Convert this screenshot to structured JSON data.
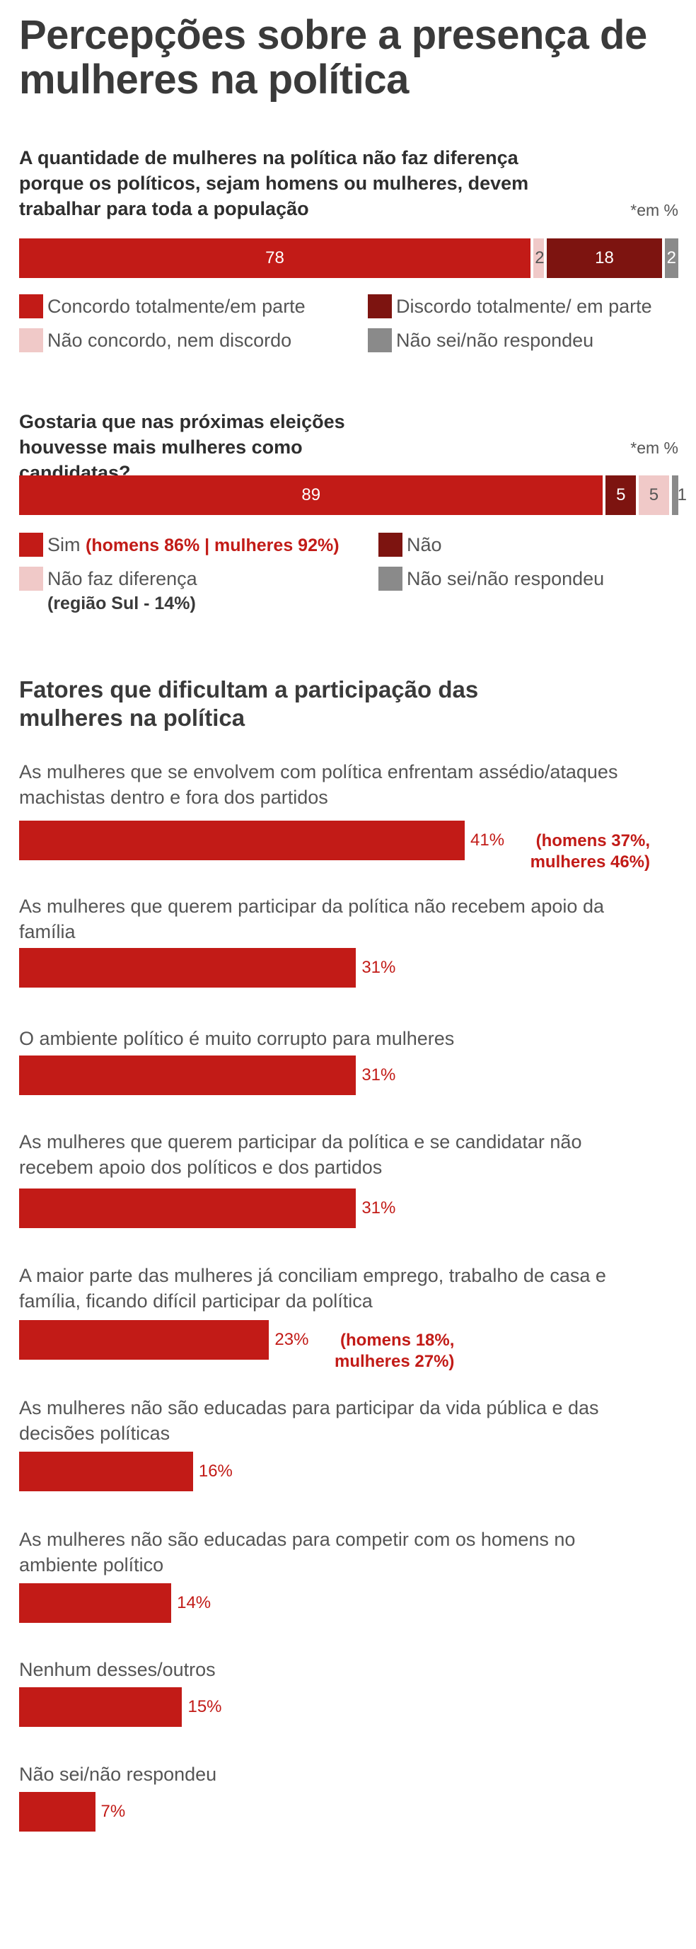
{
  "title": "Percepções sobre a presença de mulheres na política",
  "colors": {
    "red": "#c21b17",
    "dark_red": "#7d1410",
    "light_pink": "#f0c9c8",
    "gray": "#8a8a8a"
  },
  "chart_data": [
    {
      "type": "bar",
      "stacked": true,
      "orientation": "horizontal",
      "title": "A quantidade de mulheres na política não faz diferença porque os políticos, sejam homens ou mulheres, devem trabalhar para toda a população",
      "unit_note": "*em %",
      "series": [
        {
          "name": "Concordo totalmente/em parte",
          "value": 78,
          "color": "#c21b17"
        },
        {
          "name": "Não concordo, nem discordo",
          "value": 2,
          "color": "#f0c9c8"
        },
        {
          "name": "Discordo totalmente/ em parte",
          "value": 18,
          "color": "#7d1410"
        },
        {
          "name": "Não sei/não respondeu",
          "value": 2,
          "color": "#8a8a8a"
        }
      ]
    },
    {
      "type": "bar",
      "stacked": true,
      "orientation": "horizontal",
      "title": "Gostaria que nas próximas eleições houvesse mais mulheres como candidatas?",
      "unit_note": "*em %",
      "series": [
        {
          "name": "Sim",
          "note": "(homens 86% | mulheres 92%)",
          "value": 89,
          "color": "#c21b17"
        },
        {
          "name": "Não",
          "value": 5,
          "color": "#7d1410"
        },
        {
          "name": "Não faz diferença",
          "note": "(região Sul - 14%)",
          "value": 5,
          "color": "#f0c9c8"
        },
        {
          "name": "Não sei/não respondeu",
          "value": 1,
          "color": "#8a8a8a"
        }
      ]
    },
    {
      "type": "bar",
      "orientation": "horizontal",
      "title": "Fatores que dificultam a participação das mulheres na política",
      "xlim": [
        0,
        41
      ],
      "categories": [
        "As mulheres que se envolvem com política enfrentam assédio/ataques machistas dentro e fora dos partidos",
        "As mulheres que querem participar da política não recebem apoio da família",
        "O ambiente político é muito corrupto para mulheres",
        "As mulheres que querem participar da política e se candidatar não recebem apoio dos políticos e dos partidos",
        "A maior parte das mulheres já conciliam emprego, trabalho de casa e família, ficando difícil participar da política",
        "As mulheres não são educadas para participar da vida pública e das decisões políticas",
        "As mulheres não são educadas para competir com os homens no ambiente político",
        "Nenhum desses/outros",
        "Não sei/não respondeu"
      ],
      "values": [
        41,
        31,
        31,
        31,
        23,
        16,
        14,
        15,
        7
      ],
      "value_labels": [
        "41%",
        "31%",
        "31%",
        "31%",
        "23%",
        "16%",
        "14%",
        "15%",
        "7%"
      ],
      "notes": [
        "(homens 37%, mulheres 46%)",
        "",
        "",
        "",
        "(homens 18%, mulheres 27%)",
        "",
        "",
        "",
        ""
      ]
    }
  ]
}
